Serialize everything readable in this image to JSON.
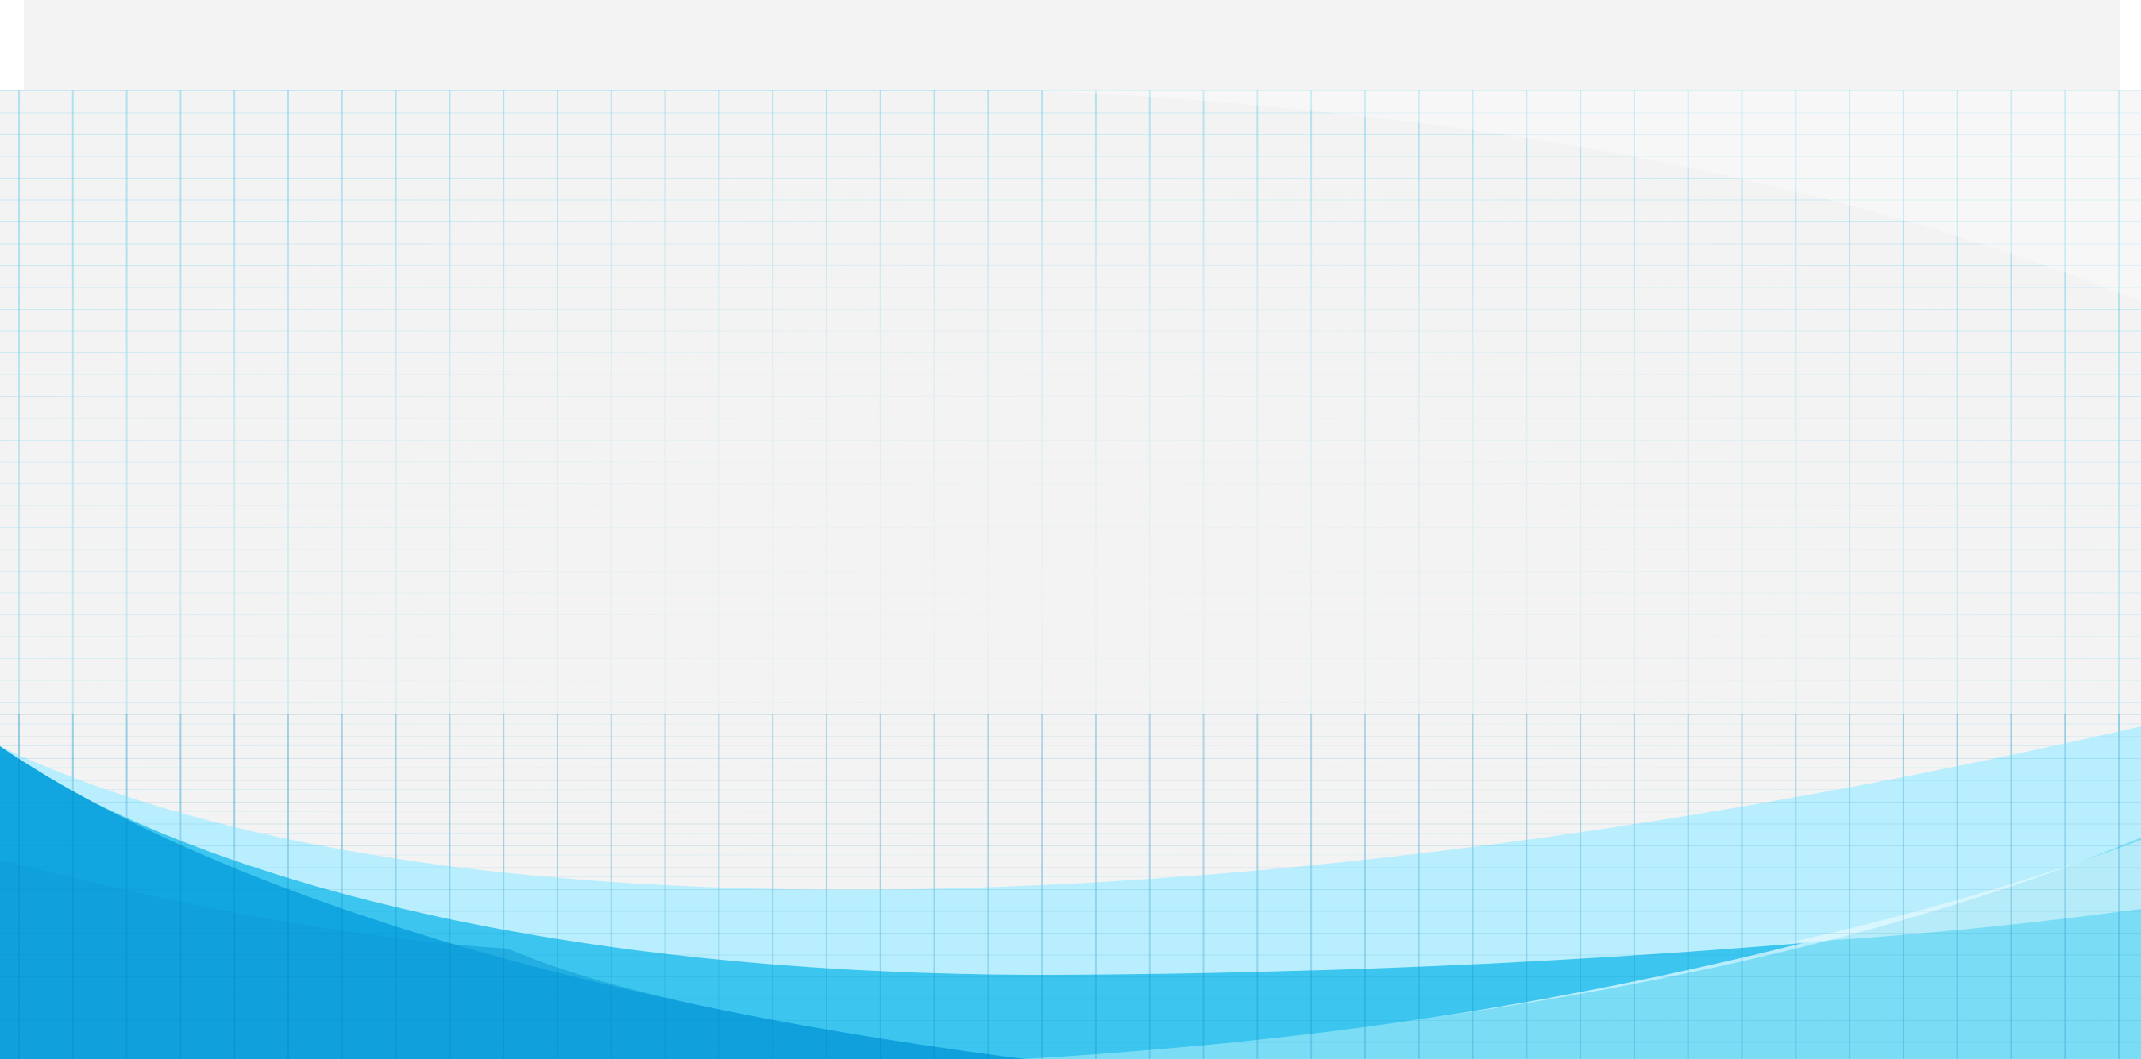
{
  "background": {
    "page_color": "#ffffff",
    "panel_color": "#f3f3f3",
    "grid_color": "#7ed2eb",
    "wave_colors": {
      "pale": "#b8eefd",
      "light": "#7addf5",
      "medium": "#3cc6ef",
      "dark": "#12a6e0",
      "highlight": "#ffffff"
    }
  }
}
